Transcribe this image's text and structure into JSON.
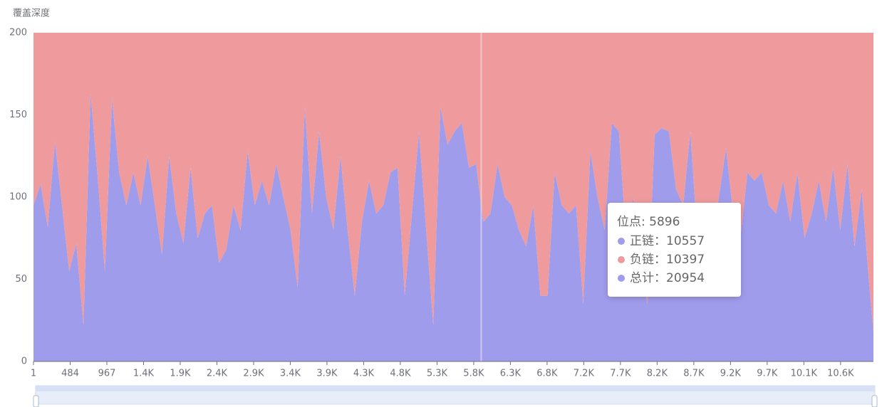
{
  "chart_data": {
    "type": "stacked-area",
    "ylabel": "覆盖深度",
    "xlim": [
      1,
      11060
    ],
    "ylim": [
      0,
      200
    ],
    "yticks": [
      0,
      50,
      100,
      150,
      200
    ],
    "xticks": [
      1,
      484,
      967,
      {
        "value": 1450,
        "label": "1.4K"
      },
      {
        "value": 1933,
        "label": "1.9K"
      },
      {
        "value": 2416,
        "label": "2.4K"
      },
      {
        "value": 2899,
        "label": "2.9K"
      },
      {
        "value": 3382,
        "label": "3.4K"
      },
      {
        "value": 3865,
        "label": "3.9K"
      },
      {
        "value": 4348,
        "label": "4.3K"
      },
      {
        "value": 4831,
        "label": "4.8K"
      },
      {
        "value": 5314,
        "label": "5.3K"
      },
      {
        "value": 5797,
        "label": "5.8K"
      },
      {
        "value": 6280,
        "label": "6.3K"
      },
      {
        "value": 6763,
        "label": "6.8K"
      },
      {
        "value": 7246,
        "label": "7.2K"
      },
      {
        "value": 7729,
        "label": "7.7K"
      },
      {
        "value": 8212,
        "label": "8.2K"
      },
      {
        "value": 8695,
        "label": "8.7K"
      },
      {
        "value": 9178,
        "label": "9.2K"
      },
      {
        "value": 9661,
        "label": "9.7K"
      },
      {
        "value": 10144,
        "label": "10.1K"
      },
      {
        "value": 10627,
        "label": "10.6K"
      }
    ],
    "x": [
      1,
      95,
      189,
      283,
      377,
      471,
      565,
      659,
      753,
      847,
      941,
      1035,
      1129,
      1223,
      1317,
      1411,
      1505,
      1599,
      1693,
      1787,
      1881,
      1975,
      2069,
      2163,
      2257,
      2351,
      2445,
      2539,
      2633,
      2727,
      2821,
      2915,
      3009,
      3103,
      3197,
      3291,
      3385,
      3479,
      3573,
      3667,
      3761,
      3855,
      3949,
      4043,
      4137,
      4231,
      4325,
      4419,
      4513,
      4607,
      4701,
      4795,
      4889,
      4983,
      5077,
      5171,
      5265,
      5359,
      5453,
      5547,
      5641,
      5735,
      5829,
      5923,
      6017,
      6111,
      6205,
      6299,
      6393,
      6487,
      6581,
      6675,
      6769,
      6863,
      6957,
      7051,
      7145,
      7239,
      7333,
      7427,
      7521,
      7615,
      7709,
      7803,
      7897,
      7991,
      8085,
      8179,
      8273,
      8367,
      8461,
      8555,
      8649,
      8743,
      8837,
      8931,
      9025,
      9119,
      9213,
      9307,
      9401,
      9495,
      9589,
      9683,
      9777,
      9871,
      9965,
      10059,
      10153,
      10247,
      10341,
      10435,
      10529,
      10623,
      10717,
      10811,
      10905,
      10999,
      11060
    ],
    "series": [
      {
        "name": "正链",
        "color": "#a09cec",
        "values": [
          95,
          108,
          82,
          134,
          95,
          55,
          72,
          22,
          163,
          112,
          55,
          160,
          115,
          95,
          115,
          95,
          125,
          95,
          65,
          125,
          90,
          72,
          118,
          75,
          90,
          95,
          60,
          68,
          95,
          80,
          128,
          95,
          110,
          95,
          120,
          100,
          80,
          45,
          155,
          90,
          140,
          100,
          80,
          125,
          80,
          40,
          85,
          110,
          90,
          95,
          115,
          118,
          40,
          90,
          140,
          80,
          22,
          155,
          132,
          140,
          145,
          118,
          120,
          85,
          90,
          120,
          100,
          95,
          80,
          70,
          95,
          40,
          40,
          115,
          95,
          90,
          95,
          35,
          128,
          100,
          80,
          145,
          140,
          75,
          100,
          60,
          35,
          138,
          142,
          140,
          105,
          95,
          140,
          75,
          85,
          75,
          100,
          130,
          90,
          75,
          115,
          110,
          115,
          95,
          90,
          110,
          85,
          115,
          75,
          90,
          110,
          85,
          118,
          80,
          120,
          70,
          105,
          50,
          18
        ]
      },
      {
        "name": "负链",
        "color": "#ef9a9c",
        "values": [
          105,
          92,
          118,
          66,
          105,
          145,
          128,
          178,
          37,
          88,
          145,
          40,
          85,
          105,
          85,
          105,
          75,
          105,
          135,
          75,
          110,
          128,
          82,
          125,
          110,
          105,
          140,
          132,
          105,
          120,
          72,
          105,
          90,
          105,
          80,
          100,
          120,
          155,
          45,
          110,
          60,
          100,
          120,
          75,
          120,
          160,
          115,
          90,
          110,
          105,
          85,
          82,
          160,
          110,
          60,
          120,
          178,
          45,
          68,
          60,
          55,
          82,
          80,
          115,
          110,
          80,
          100,
          105,
          120,
          130,
          105,
          160,
          160,
          85,
          105,
          110,
          105,
          165,
          72,
          100,
          120,
          55,
          60,
          125,
          100,
          140,
          165,
          62,
          58,
          60,
          95,
          105,
          60,
          125,
          115,
          125,
          100,
          70,
          110,
          125,
          85,
          90,
          85,
          105,
          110,
          90,
          115,
          85,
          125,
          110,
          90,
          115,
          82,
          120,
          80,
          130,
          95,
          150,
          182
        ]
      }
    ],
    "tooltip": {
      "x_name": "位点:",
      "x": 5896,
      "items": [
        {
          "label": "正链：",
          "value": 10557,
          "color": "#a09cec"
        },
        {
          "label": "负链：",
          "value": 10397,
          "color": "#ef9a9c"
        },
        {
          "label": "总计：",
          "value": 20954,
          "color": "#a09cec"
        }
      ]
    }
  }
}
